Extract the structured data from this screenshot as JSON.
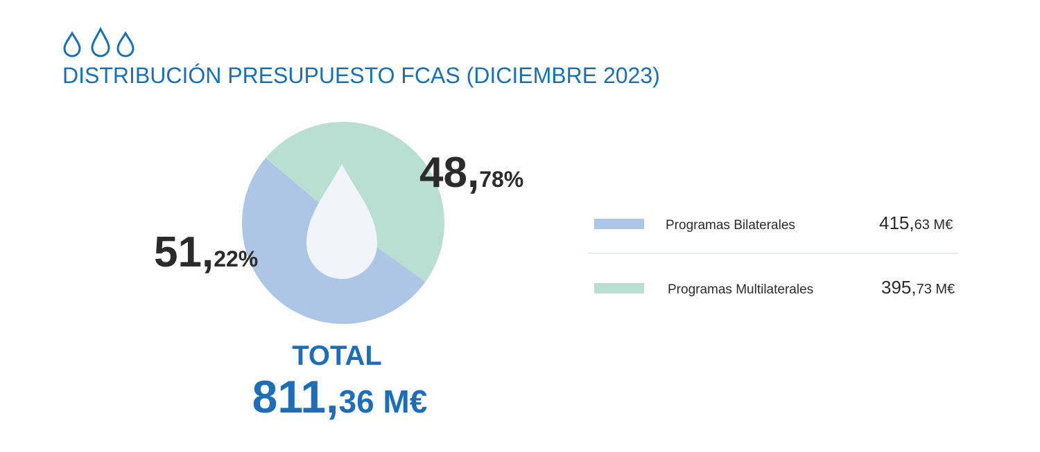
{
  "chart_data": {
    "type": "pie",
    "title": "DISTRIBUCIÓN PRESUPUESTO FCAS (DICIEMBRE 2023)",
    "categories": [
      "Programas Bilaterales",
      "Programas Multilaterales"
    ],
    "values": [
      51.22,
      48.78
    ],
    "value_labels": [
      "51,22%",
      "48,78%"
    ],
    "colors": [
      "#aec6e6",
      "#b9dfd3"
    ],
    "amounts": {
      "values": [
        415.63,
        395.73
      ],
      "value_labels": [
        "415,63 M€",
        "395,73 M€"
      ]
    },
    "total": {
      "label": "TOTAL",
      "value": 811.36,
      "value_label": "811,36 M€"
    }
  }
}
